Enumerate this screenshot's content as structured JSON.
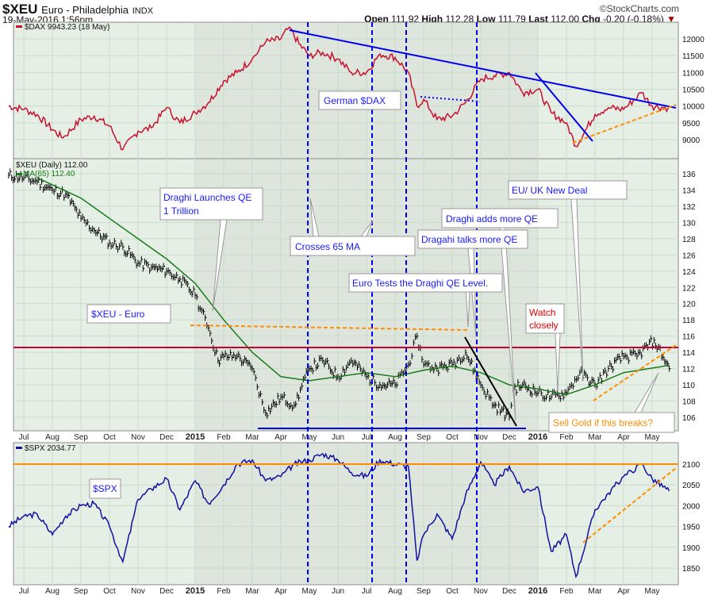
{
  "header": {
    "symbol": "$XEU",
    "name": "Euro - Philadelphia",
    "exchange": "INDX",
    "datetime": "19-May-2016 1:56pm",
    "watermark": "©StockCharts.com",
    "quote": {
      "open_label": "Open",
      "open": "111.92",
      "high_label": "High",
      "high": "112.28",
      "low_label": "Low",
      "low": "111.79",
      "last_label": "Last",
      "last": "112.00",
      "chg_label": "Chg",
      "chg": "-0.20 (-0.18%)"
    }
  },
  "colors": {
    "dax": "#c8102e",
    "xeu": "#000000",
    "ma": "#1a7a1a",
    "spx": "#1010a0",
    "annot_blue": "#0000ee",
    "orange": "#ff8c00",
    "red_line": "#cc0033",
    "bg": "#e6efe6",
    "bg_shade": "#dde5dd"
  },
  "chart_data": [
    {
      "type": "line",
      "legend": "$DAX 9943.23 (18 May)",
      "yticks": [
        9000,
        9500,
        10000,
        10500,
        11000,
        11500,
        12000
      ],
      "ylim": [
        8500,
        12400
      ],
      "points": [
        [
          "2014-06-15",
          10000
        ],
        [
          "2014-07-01",
          9900
        ],
        [
          "2014-07-15",
          9750
        ],
        [
          "2014-08-01",
          9300
        ],
        [
          "2014-08-12",
          9050
        ],
        [
          "2014-09-01",
          9600
        ],
        [
          "2014-09-15",
          9700
        ],
        [
          "2014-10-01",
          9400
        ],
        [
          "2014-10-15",
          8700
        ],
        [
          "2014-11-01",
          9250
        ],
        [
          "2014-11-15",
          9350
        ],
        [
          "2014-12-01",
          9950
        ],
        [
          "2014-12-15",
          9500
        ],
        [
          "2015-01-01",
          9800
        ],
        [
          "2015-01-15",
          10100
        ],
        [
          "2015-02-01",
          10750
        ],
        [
          "2015-02-15",
          11000
        ],
        [
          "2015-03-01",
          11400
        ],
        [
          "2015-03-15",
          11900
        ],
        [
          "2015-04-01",
          12000
        ],
        [
          "2015-04-10",
          12350
        ],
        [
          "2015-04-20",
          11850
        ],
        [
          "2015-05-01",
          11500
        ],
        [
          "2015-05-15",
          11600
        ],
        [
          "2015-06-01",
          11400
        ],
        [
          "2015-06-15",
          11000
        ],
        [
          "2015-07-01",
          11000
        ],
        [
          "2015-07-15",
          11550
        ],
        [
          "2015-08-01",
          11450
        ],
        [
          "2015-08-15",
          11000
        ],
        [
          "2015-08-24",
          10000
        ],
        [
          "2015-09-01",
          10200
        ],
        [
          "2015-09-15",
          9600
        ],
        [
          "2015-10-01",
          9700
        ],
        [
          "2015-10-15",
          10100
        ],
        [
          "2015-11-01",
          10800
        ],
        [
          "2015-11-15",
          10900
        ],
        [
          "2015-12-01",
          11000
        ],
        [
          "2015-12-15",
          10400
        ],
        [
          "2016-01-01",
          10500
        ],
        [
          "2016-01-15",
          9800
        ],
        [
          "2016-02-01",
          9500
        ],
        [
          "2016-02-11",
          8800
        ],
        [
          "2016-03-01",
          9750
        ],
        [
          "2016-03-15",
          9950
        ],
        [
          "2016-04-01",
          9900
        ],
        [
          "2016-04-20",
          10400
        ],
        [
          "2016-05-01",
          10000
        ],
        [
          "2016-05-18",
          9943
        ]
      ]
    },
    {
      "type": "ohlc",
      "legend": "$XEU (Daily) 112.00",
      "ma_legend": "MA(65) 112.40",
      "yticks": [
        106,
        108,
        110,
        112,
        114,
        116,
        118,
        120,
        122,
        124,
        126,
        128,
        130,
        132,
        134,
        136
      ],
      "ylim": [
        105,
        137
      ],
      "points": [
        [
          "2014-06-15",
          135.8
        ],
        [
          "2014-07-01",
          135.5
        ],
        [
          "2014-07-15",
          135
        ],
        [
          "2014-08-01",
          134
        ],
        [
          "2014-08-15",
          133.5
        ],
        [
          "2014-09-01",
          130.5
        ],
        [
          "2014-09-15",
          129
        ],
        [
          "2014-10-01",
          127.5
        ],
        [
          "2014-10-15",
          127
        ],
        [
          "2014-11-01",
          125
        ],
        [
          "2014-11-15",
          124.5
        ],
        [
          "2014-12-01",
          124
        ],
        [
          "2014-12-15",
          123
        ],
        [
          "2015-01-01",
          121
        ],
        [
          "2015-01-15",
          117
        ],
        [
          "2015-01-25",
          113
        ],
        [
          "2015-02-01",
          113.5
        ],
        [
          "2015-02-15",
          113.5
        ],
        [
          "2015-03-01",
          112
        ],
        [
          "2015-03-15",
          106.5
        ],
        [
          "2015-04-01",
          108.5
        ],
        [
          "2015-04-15",
          107.5
        ],
        [
          "2015-05-01",
          112
        ],
        [
          "2015-05-15",
          113
        ],
        [
          "2015-06-01",
          111
        ],
        [
          "2015-06-15",
          113
        ],
        [
          "2015-07-01",
          111
        ],
        [
          "2015-07-15",
          110
        ],
        [
          "2015-08-01",
          110
        ],
        [
          "2015-08-15",
          112.5
        ],
        [
          "2015-08-24",
          116
        ],
        [
          "2015-09-01",
          112.5
        ],
        [
          "2015-09-15",
          112
        ],
        [
          "2015-10-01",
          112.5
        ],
        [
          "2015-10-15",
          114
        ],
        [
          "2015-11-01",
          110
        ],
        [
          "2015-11-15",
          107.5
        ],
        [
          "2015-12-01",
          106
        ],
        [
          "2015-12-05",
          109.5
        ],
        [
          "2015-12-15",
          110
        ],
        [
          "2016-01-01",
          109
        ],
        [
          "2016-01-15",
          108.5
        ],
        [
          "2016-02-01",
          109
        ],
        [
          "2016-02-15",
          111.5
        ],
        [
          "2016-03-01",
          110
        ],
        [
          "2016-03-15",
          112
        ],
        [
          "2016-04-01",
          113.5
        ],
        [
          "2016-04-15",
          113.5
        ],
        [
          "2016-05-03",
          115.5
        ],
        [
          "2016-05-19",
          112
        ]
      ],
      "ma": [
        [
          "2014-07-15",
          135.5
        ],
        [
          "2014-09-01",
          133
        ],
        [
          "2014-10-01",
          130.5
        ],
        [
          "2014-11-01",
          128
        ],
        [
          "2014-12-01",
          125.5
        ],
        [
          "2015-01-01",
          122.5
        ],
        [
          "2015-02-01",
          118
        ],
        [
          "2015-03-01",
          114
        ],
        [
          "2015-04-01",
          111
        ],
        [
          "2015-05-01",
          110.5
        ],
        [
          "2015-06-01",
          111
        ],
        [
          "2015-07-01",
          111.5
        ],
        [
          "2015-08-01",
          111
        ],
        [
          "2015-09-01",
          111.8
        ],
        [
          "2015-10-01",
          112.3
        ],
        [
          "2015-11-01",
          111.5
        ],
        [
          "2015-12-01",
          110
        ],
        [
          "2016-01-01",
          109.5
        ],
        [
          "2016-02-01",
          108.8
        ],
        [
          "2016-03-01",
          110
        ],
        [
          "2016-04-01",
          111.5
        ],
        [
          "2016-05-19",
          112.4
        ]
      ]
    },
    {
      "type": "line",
      "legend": "$SPX 2034.77",
      "yticks": [
        1850,
        1900,
        1950,
        2000,
        2050,
        2100
      ],
      "ylim": [
        1815,
        2130
      ],
      "points": [
        [
          "2014-06-15",
          1950
        ],
        [
          "2014-07-01",
          1975
        ],
        [
          "2014-07-15",
          1980
        ],
        [
          "2014-08-01",
          1930
        ],
        [
          "2014-08-15",
          1975
        ],
        [
          "2014-09-01",
          2000
        ],
        [
          "2014-09-15",
          2005
        ],
        [
          "2014-10-01",
          1950
        ],
        [
          "2014-10-15",
          1865
        ],
        [
          "2014-11-01",
          2015
        ],
        [
          "2014-11-15",
          2040
        ],
        [
          "2014-12-01",
          2065
        ],
        [
          "2014-12-15",
          1990
        ],
        [
          "2015-01-01",
          2060
        ],
        [
          "2015-01-15",
          2005
        ],
        [
          "2015-02-01",
          2050
        ],
        [
          "2015-02-15",
          2100
        ],
        [
          "2015-03-01",
          2110
        ],
        [
          "2015-03-15",
          2060
        ],
        [
          "2015-04-01",
          2070
        ],
        [
          "2015-04-15",
          2100
        ],
        [
          "2015-05-01",
          2110
        ],
        [
          "2015-05-15",
          2125
        ],
        [
          "2015-06-01",
          2110
        ],
        [
          "2015-06-15",
          2080
        ],
        [
          "2015-07-01",
          2070
        ],
        [
          "2015-07-15",
          2110
        ],
        [
          "2015-08-01",
          2100
        ],
        [
          "2015-08-15",
          2095
        ],
        [
          "2015-08-24",
          1868
        ],
        [
          "2015-09-01",
          1930
        ],
        [
          "2015-09-15",
          1980
        ],
        [
          "2015-10-01",
          1920
        ],
        [
          "2015-10-15",
          2025
        ],
        [
          "2015-11-01",
          2105
        ],
        [
          "2015-11-15",
          2050
        ],
        [
          "2015-12-01",
          2095
        ],
        [
          "2015-12-15",
          2035
        ],
        [
          "2016-01-01",
          2045
        ],
        [
          "2016-01-15",
          1890
        ],
        [
          "2016-02-01",
          1930
        ],
        [
          "2016-02-11",
          1829
        ],
        [
          "2016-03-01",
          1990
        ],
        [
          "2016-03-15",
          2030
        ],
        [
          "2016-04-01",
          2070
        ],
        [
          "2016-04-20",
          2100
        ],
        [
          "2016-05-01",
          2065
        ],
        [
          "2016-05-19",
          2035
        ]
      ]
    }
  ],
  "xaxis": {
    "labels": [
      "Jul",
      "Aug",
      "Sep",
      "Oct",
      "Nov",
      "Dec",
      "2015",
      "Feb",
      "Mar",
      "Apr",
      "May",
      "Jun",
      "Jul",
      "Aug",
      "Sep",
      "Oct",
      "Nov",
      "Dec",
      "2016",
      "Feb",
      "Mar",
      "Apr",
      "May"
    ],
    "bold": [
      "2015",
      "2016"
    ]
  },
  "annotations": {
    "dax": "German $DAX",
    "qe": [
      "Draghi Launches QE",
      "1 Trillion"
    ],
    "crosses": "Crosses 65 MA",
    "talks": "Dragahi talks more QE",
    "adds": "Draghi adds more QE",
    "deal": "EU/ UK New Deal",
    "tests": "Euro Tests the Draghi QE Level.",
    "xeu": "$XEU - Euro",
    "watch": [
      "Watch",
      "closely"
    ],
    "gold": "Sell Gold if this breaks?",
    "spx": "$SPX"
  }
}
